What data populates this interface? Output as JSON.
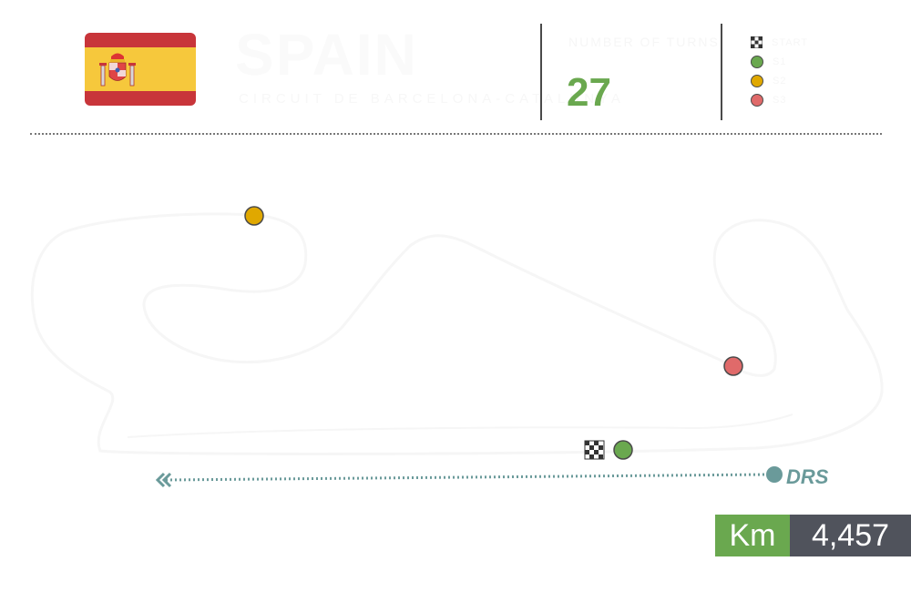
{
  "header": {
    "country": "SPAIN",
    "circuit": "CIRCUIT DE BARCELONA-CATALUNYA",
    "turns_label": "NUMBER OF TURNS",
    "turns_value": "27"
  },
  "legend": {
    "items": [
      {
        "icon": "checkered-flag-icon",
        "label": "START",
        "color": ""
      },
      {
        "icon": "sector-dot-icon",
        "label": "S1",
        "color": "#6aa84f"
      },
      {
        "icon": "sector-dot-icon",
        "label": "S2",
        "color": "#e0a800"
      },
      {
        "icon": "sector-dot-icon",
        "label": "S3",
        "color": "#e06a6a"
      }
    ]
  },
  "map": {
    "drs_label": "DRS",
    "drs_color": "#6a9a9a"
  },
  "length": {
    "unit_label": "Km",
    "value": "4,457"
  },
  "colors": {
    "accent_green": "#6aa84f",
    "sector2_yellow": "#e0a800",
    "sector3_red": "#e06a6a",
    "value_bg": "#50535c",
    "flag_red": "#c8353a",
    "flag_yellow": "#f6c83c"
  }
}
